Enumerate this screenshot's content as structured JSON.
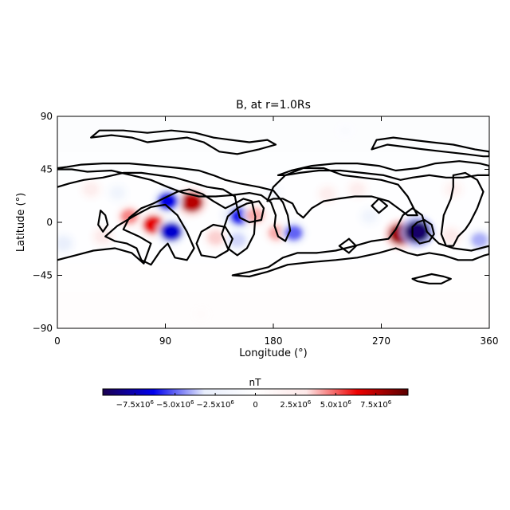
{
  "chart_data": {
    "type": "heatmap",
    "title": "B, at r=1.0Rs",
    "xlabel": "Longitude (°)",
    "ylabel": "Latitude (°)",
    "xlim": [
      0,
      360
    ],
    "ylim": [
      -90,
      90
    ],
    "x_ticks": [
      {
        "value": 0,
        "label": "0"
      },
      {
        "value": 90,
        "label": "90"
      },
      {
        "value": 180,
        "label": "180"
      },
      {
        "value": 270,
        "label": "270"
      },
      {
        "value": 360,
        "label": "360"
      }
    ],
    "y_ticks": [
      {
        "value": 90,
        "label": "90"
      },
      {
        "value": 45,
        "label": "45"
      },
      {
        "value": 0,
        "label": "0"
      },
      {
        "value": -45,
        "label": "-45"
      },
      {
        "value": -90,
        "label": "-90"
      }
    ],
    "colorbar": {
      "title": "nT",
      "range": [
        -9500000,
        9500000
      ],
      "ticks": [
        {
          "value": -7500000,
          "label": "-7.5x10^6"
        },
        {
          "value": -5000000,
          "label": "-5.0x10^6"
        },
        {
          "value": -2500000,
          "label": "-2.5x10^6"
        },
        {
          "value": 0,
          "label": "0"
        },
        {
          "value": 2500000,
          "label": "2.5x10^6"
        },
        {
          "value": 5000000,
          "label": "5.0x10^6"
        },
        {
          "value": 7500000,
          "label": "7.5x10^6"
        }
      ],
      "colors": [
        "#1a0050",
        "#0000ee",
        "#e8eefc",
        "#ffffff",
        "#fde8e8",
        "#ee0000",
        "#5a0000"
      ]
    },
    "field_features": [
      {
        "lon": 112,
        "lat": 17,
        "value": 7500000
      },
      {
        "lon": 92,
        "lat": 18,
        "value": -6500000
      },
      {
        "lon": 80,
        "lat": -2,
        "value": 6500000
      },
      {
        "lon": 95,
        "lat": -8,
        "value": -7000000
      },
      {
        "lon": 60,
        "lat": 5,
        "value": 4500000
      },
      {
        "lon": 38,
        "lat": -12,
        "value": 3000000
      },
      {
        "lon": 28,
        "lat": 28,
        "value": 2500000
      },
      {
        "lon": 5,
        "lat": -18,
        "value": -3000000
      },
      {
        "lon": 50,
        "lat": 25,
        "value": -2000000
      },
      {
        "lon": 132,
        "lat": -13,
        "value": 3500000
      },
      {
        "lon": 145,
        "lat": 6,
        "value": -3000000
      },
      {
        "lon": 150,
        "lat": -15,
        "value": -3500000
      },
      {
        "lon": 152,
        "lat": 5,
        "value": -6000000
      },
      {
        "lon": 165,
        "lat": 6,
        "value": 4000000
      },
      {
        "lon": 183,
        "lat": -9,
        "value": 4000000
      },
      {
        "lon": 197,
        "lat": -9,
        "value": -5000000
      },
      {
        "lon": 225,
        "lat": 24,
        "value": 2500000
      },
      {
        "lon": 250,
        "lat": 28,
        "value": 2500000
      },
      {
        "lon": 260,
        "lat": 5,
        "value": -2000000
      },
      {
        "lon": 286,
        "lat": -10,
        "value": 8000000
      },
      {
        "lon": 300,
        "lat": -8,
        "value": -9000000
      },
      {
        "lon": 328,
        "lat": -12,
        "value": 3000000
      },
      {
        "lon": 352,
        "lat": -15,
        "value": -4000000
      },
      {
        "lon": 330,
        "lat": 28,
        "value": 2000000
      },
      {
        "lon": 180,
        "lat": 25,
        "value": -1500000
      },
      {
        "lon": 240,
        "lat": 78,
        "value": -800000
      },
      {
        "lon": 120,
        "lat": -78,
        "value": 600000
      }
    ],
    "neutral_line_contours": [
      [
        [
          0,
          45
        ],
        [
          12,
          45
        ],
        [
          25,
          43
        ],
        [
          45,
          44
        ],
        [
          62,
          40
        ],
        [
          78,
          36
        ],
        [
          92,
          30
        ],
        [
          105,
          25
        ],
        [
          118,
          22
        ],
        [
          132,
          22
        ],
        [
          145,
          23
        ],
        [
          160,
          25
        ],
        [
          170,
          23
        ],
        [
          178,
          17
        ],
        [
          182,
          6
        ],
        [
          181,
          -3
        ],
        [
          184,
          -12
        ],
        [
          190,
          -16
        ],
        [
          194,
          -7
        ],
        [
          192,
          6
        ],
        [
          188,
          17
        ],
        [
          180,
          27
        ],
        [
          168,
          30
        ],
        [
          152,
          33
        ],
        [
          140,
          36
        ],
        [
          130,
          40
        ],
        [
          118,
          44
        ],
        [
          102,
          46
        ],
        [
          82,
          48
        ],
        [
          60,
          50
        ],
        [
          38,
          50
        ],
        [
          20,
          49
        ],
        [
          8,
          47
        ],
        [
          0,
          46
        ]
      ],
      [
        [
          0,
          -32
        ],
        [
          15,
          -28
        ],
        [
          30,
          -24
        ],
        [
          48,
          -22
        ],
        [
          62,
          -26
        ],
        [
          72,
          -35
        ],
        [
          78,
          -18
        ],
        [
          68,
          -12
        ],
        [
          55,
          -6
        ],
        [
          60,
          4
        ],
        [
          70,
          12
        ],
        [
          80,
          16
        ],
        [
          88,
          20
        ],
        [
          100,
          26
        ],
        [
          110,
          28
        ],
        [
          121,
          24
        ],
        [
          130,
          18
        ],
        [
          140,
          12
        ],
        [
          148,
          16
        ],
        [
          155,
          20
        ],
        [
          162,
          18
        ],
        [
          165,
          5
        ],
        [
          164,
          -10
        ],
        [
          158,
          -22
        ],
        [
          150,
          -28
        ],
        [
          142,
          -22
        ],
        [
          137,
          -10
        ],
        [
          142,
          5
        ],
        [
          150,
          12
        ],
        [
          148,
          22
        ],
        [
          138,
          28
        ],
        [
          125,
          30
        ],
        [
          112,
          34
        ],
        [
          98,
          38
        ],
        [
          84,
          40
        ],
        [
          70,
          42
        ],
        [
          55,
          42
        ],
        [
          38,
          38
        ],
        [
          22,
          36
        ],
        [
          10,
          33
        ],
        [
          0,
          30
        ]
      ],
      [
        [
          40,
          -12
        ],
        [
          50,
          -3
        ],
        [
          65,
          6
        ],
        [
          78,
          13
        ],
        [
          90,
          15
        ],
        [
          100,
          6
        ],
        [
          108,
          -8
        ],
        [
          114,
          -22
        ],
        [
          108,
          -32
        ],
        [
          98,
          -30
        ],
        [
          92,
          -18
        ],
        [
          86,
          -24
        ],
        [
          78,
          -36
        ],
        [
          70,
          -32
        ],
        [
          66,
          -22
        ],
        [
          58,
          -18
        ],
        [
          48,
          -16
        ],
        [
          40,
          -12
        ]
      ],
      [
        [
          150,
          12
        ],
        [
          158,
          16
        ],
        [
          168,
          18
        ],
        [
          172,
          12
        ],
        [
          170,
          2
        ],
        [
          160,
          0
        ],
        [
          152,
          4
        ],
        [
          150,
          12
        ]
      ],
      [
        [
          120,
          -28
        ],
        [
          132,
          -30
        ],
        [
          142,
          -24
        ],
        [
          146,
          -14
        ],
        [
          140,
          -4
        ],
        [
          130,
          -2
        ],
        [
          120,
          -8
        ],
        [
          116,
          -18
        ],
        [
          120,
          -28
        ]
      ],
      [
        [
          146,
          -45
        ],
        [
          160,
          -46
        ],
        [
          175,
          -42
        ],
        [
          192,
          -36
        ],
        [
          210,
          -34
        ],
        [
          232,
          -32
        ],
        [
          250,
          -30
        ],
        [
          268,
          -26
        ],
        [
          282,
          -22
        ],
        [
          292,
          -26
        ],
        [
          300,
          -28
        ],
        [
          310,
          -26
        ],
        [
          322,
          -28
        ],
        [
          334,
          -32
        ],
        [
          346,
          -32
        ],
        [
          356,
          -28
        ],
        [
          360,
          -27
        ],
        [
          360,
          -20
        ],
        [
          345,
          -24
        ],
        [
          330,
          -22
        ],
        [
          318,
          -18
        ],
        [
          308,
          -8
        ],
        [
          304,
          6
        ],
        [
          296,
          12
        ],
        [
          288,
          6
        ],
        [
          282,
          -6
        ],
        [
          276,
          -14
        ],
        [
          262,
          -16
        ],
        [
          248,
          -20
        ],
        [
          232,
          -24
        ],
        [
          216,
          -26
        ],
        [
          200,
          -26
        ],
        [
          188,
          -30
        ],
        [
          176,
          -38
        ],
        [
          160,
          -42
        ],
        [
          146,
          -45
        ]
      ],
      [
        [
          175,
          18
        ],
        [
          180,
          30
        ],
        [
          190,
          40
        ],
        [
          205,
          46
        ],
        [
          222,
          46
        ],
        [
          238,
          40
        ],
        [
          254,
          38
        ],
        [
          270,
          36
        ],
        [
          284,
          32
        ],
        [
          292,
          22
        ],
        [
          296,
          14
        ],
        [
          300,
          6
        ],
        [
          292,
          6
        ],
        [
          284,
          12
        ],
        [
          276,
          18
        ],
        [
          262,
          22
        ],
        [
          248,
          22
        ],
        [
          234,
          20
        ],
        [
          222,
          18
        ],
        [
          212,
          12
        ],
        [
          205,
          4
        ],
        [
          200,
          8
        ],
        [
          196,
          16
        ],
        [
          188,
          20
        ],
        [
          180,
          20
        ],
        [
          175,
          18
        ]
      ],
      [
        [
          184,
          40
        ],
        [
          195,
          44
        ],
        [
          212,
          48
        ],
        [
          232,
          50
        ],
        [
          250,
          50
        ],
        [
          268,
          48
        ],
        [
          282,
          44
        ],
        [
          300,
          46
        ],
        [
          315,
          50
        ],
        [
          335,
          52
        ],
        [
          352,
          50
        ],
        [
          360,
          48
        ],
        [
          360,
          40
        ],
        [
          350,
          40
        ],
        [
          338,
          38
        ],
        [
          324,
          38
        ],
        [
          310,
          40
        ],
        [
          296,
          38
        ],
        [
          286,
          36
        ],
        [
          272,
          40
        ],
        [
          254,
          42
        ],
        [
          236,
          44
        ],
        [
          218,
          44
        ],
        [
          202,
          42
        ],
        [
          190,
          40
        ],
        [
          184,
          40
        ]
      ],
      [
        [
          296,
          -4
        ],
        [
          300,
          0
        ],
        [
          306,
          2
        ],
        [
          312,
          -2
        ],
        [
          314,
          -10
        ],
        [
          310,
          -16
        ],
        [
          302,
          -18
        ],
        [
          296,
          -12
        ],
        [
          296,
          -4
        ]
      ],
      [
        [
          330,
          40
        ],
        [
          340,
          42
        ],
        [
          350,
          36
        ],
        [
          355,
          26
        ],
        [
          350,
          12
        ],
        [
          344,
          0
        ],
        [
          340,
          -6
        ],
        [
          334,
          -12
        ],
        [
          330,
          -20
        ],
        [
          324,
          -20
        ],
        [
          320,
          -10
        ],
        [
          322,
          6
        ],
        [
          328,
          20
        ],
        [
          330,
          30
        ],
        [
          330,
          40
        ]
      ],
      [
        [
          28,
          72
        ],
        [
          45,
          74
        ],
        [
          62,
          72
        ],
        [
          75,
          68
        ],
        [
          90,
          70
        ],
        [
          108,
          72
        ],
        [
          122,
          68
        ],
        [
          135,
          60
        ],
        [
          150,
          58
        ],
        [
          168,
          62
        ],
        [
          182,
          66
        ],
        [
          175,
          70
        ],
        [
          160,
          68
        ],
        [
          145,
          70
        ],
        [
          130,
          72
        ],
        [
          115,
          76
        ],
        [
          95,
          78
        ],
        [
          75,
          76
        ],
        [
          55,
          78
        ],
        [
          35,
          78
        ],
        [
          28,
          72
        ]
      ],
      [
        [
          262,
          62
        ],
        [
          275,
          66
        ],
        [
          290,
          64
        ],
        [
          305,
          62
        ],
        [
          322,
          60
        ],
        [
          340,
          58
        ],
        [
          355,
          56
        ],
        [
          360,
          56
        ],
        [
          360,
          60
        ],
        [
          348,
          62
        ],
        [
          330,
          66
        ],
        [
          312,
          68
        ],
        [
          296,
          70
        ],
        [
          280,
          72
        ],
        [
          266,
          70
        ],
        [
          262,
          62
        ]
      ],
      [
        [
          36,
          10
        ],
        [
          40,
          6
        ],
        [
          42,
          -2
        ],
        [
          38,
          -8
        ],
        [
          34,
          -2
        ],
        [
          36,
          10
        ]
      ],
      [
        [
          235,
          -20
        ],
        [
          243,
          -14
        ],
        [
          249,
          -20
        ],
        [
          243,
          -26
        ],
        [
          235,
          -20
        ]
      ],
      [
        [
          262,
          14
        ],
        [
          268,
          20
        ],
        [
          275,
          14
        ],
        [
          268,
          8
        ],
        [
          262,
          14
        ]
      ],
      [
        [
          296,
          -48
        ],
        [
          304,
          -46
        ],
        [
          312,
          -44
        ],
        [
          322,
          -46
        ],
        [
          328,
          -48
        ],
        [
          320,
          -52
        ],
        [
          310,
          -52
        ],
        [
          300,
          -50
        ],
        [
          296,
          -48
        ]
      ]
    ]
  }
}
